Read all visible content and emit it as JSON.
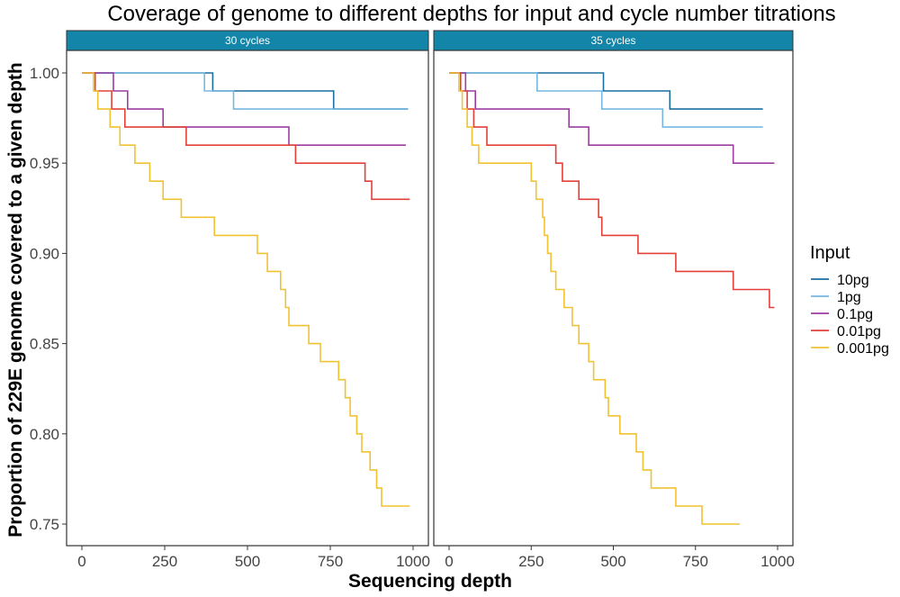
{
  "chart_data": {
    "type": "line",
    "step": true,
    "title": "Coverage of genome to different depths for input and cycle number titrations",
    "xlabel": "Sequencing depth",
    "ylabel": "Proportion of 229E genome covered to a given depth",
    "xlim": [
      0,
      1000
    ],
    "ylim": [
      0.75,
      1.0
    ],
    "xticks": [
      0,
      250,
      500,
      750,
      1000
    ],
    "xtick_labels": [
      "0",
      "250",
      "500",
      "750",
      "1000"
    ],
    "yticks": [
      0.75,
      0.8,
      0.85,
      0.9,
      0.95,
      1.0
    ],
    "ytick_labels": [
      "0.75",
      "0.80",
      "0.85",
      "0.90",
      "0.95",
      "1.00"
    ],
    "grid": false,
    "legend": {
      "title": "Input",
      "placement": "right",
      "entries": [
        {
          "label": "10pg",
          "color": "#1a6f9e"
        },
        {
          "label": "1pg",
          "color": "#76b7e0"
        },
        {
          "label": "0.1pg",
          "color": "#9b3ea0"
        },
        {
          "label": "0.01pg",
          "color": "#e2413a"
        },
        {
          "label": "0.001pg",
          "color": "#f1c232"
        }
      ]
    },
    "strip_color": "#1285a8",
    "panels": [
      {
        "label": "30 cycles",
        "series": [
          {
            "name": "10pg",
            "color": "#1a6f9e",
            "x": [
              0,
              395,
              460,
              760,
              985
            ],
            "y": [
              1.0,
              0.99,
              0.99,
              0.98,
              0.98
            ]
          },
          {
            "name": "1pg",
            "color": "#76b7e0",
            "x": [
              0,
              370,
              458,
              985
            ],
            "y": [
              1.0,
              0.99,
              0.98,
              0.98
            ]
          },
          {
            "name": "0.1pg",
            "color": "#9b3ea0",
            "x": [
              0,
              95,
              138,
              245,
              625,
              978
            ],
            "y": [
              1.0,
              0.99,
              0.98,
              0.97,
              0.96,
              0.96
            ]
          },
          {
            "name": "0.01pg",
            "color": "#e2413a",
            "x": [
              0,
              40,
              90,
              130,
              315,
              645,
              855,
              875,
              990
            ],
            "y": [
              1.0,
              0.99,
              0.98,
              0.97,
              0.96,
              0.95,
              0.94,
              0.93,
              0.93
            ]
          },
          {
            "name": "0.001pg",
            "color": "#f1c232",
            "x": [
              0,
              35,
              48,
              65,
              85,
              115,
              160,
              205,
              245,
              300,
              400,
              530,
              560,
              600,
              615,
              625,
              685,
              720,
              775,
              795,
              810,
              830,
              845,
              870,
              890,
              905,
              925,
              930,
              950,
              970,
              990
            ],
            "y": [
              1.0,
              0.99,
              0.98,
              0.98,
              0.97,
              0.96,
              0.95,
              0.94,
              0.93,
              0.92,
              0.91,
              0.9,
              0.89,
              0.88,
              0.87,
              0.86,
              0.85,
              0.84,
              0.83,
              0.82,
              0.81,
              0.8,
              0.79,
              0.78,
              0.77,
              0.76,
              0.76,
              0.76,
              0.76,
              0.76,
              0.76
            ]
          }
        ]
      },
      {
        "label": "35 cycles",
        "series": [
          {
            "name": "10pg",
            "color": "#1a6f9e",
            "x": [
              0,
              470,
              672,
              955
            ],
            "y": [
              1.0,
              0.99,
              0.98,
              0.98
            ]
          },
          {
            "name": "1pg",
            "color": "#76b7e0",
            "x": [
              0,
              268,
              465,
              650,
              955
            ],
            "y": [
              1.0,
              0.99,
              0.98,
              0.97,
              0.97
            ]
          },
          {
            "name": "0.1pg",
            "color": "#9b3ea0",
            "x": [
              0,
              50,
              80,
              365,
              425,
              865,
              990
            ],
            "y": [
              1.0,
              0.99,
              0.98,
              0.97,
              0.96,
              0.95,
              0.95
            ]
          },
          {
            "name": "0.01pg",
            "color": "#e2413a",
            "x": [
              0,
              35,
              55,
              75,
              115,
              325,
              345,
              395,
              455,
              465,
              575,
              690,
              865,
              975,
              990
            ],
            "y": [
              1.0,
              0.99,
              0.98,
              0.97,
              0.96,
              0.95,
              0.94,
              0.93,
              0.92,
              0.91,
              0.9,
              0.89,
              0.88,
              0.87,
              0.87
            ]
          },
          {
            "name": "0.001pg",
            "color": "#f1c232",
            "x": [
              0,
              30,
              40,
              55,
              70,
              90,
              95,
              250,
              265,
              285,
              290,
              300,
              310,
              325,
              350,
              375,
              395,
              425,
              440,
              475,
              485,
              520,
              570,
              590,
              615,
              650,
              690,
              715,
              770,
              885
            ],
            "y": [
              1.0,
              0.99,
              0.98,
              0.97,
              0.96,
              0.95,
              0.95,
              0.94,
              0.93,
              0.92,
              0.91,
              0.9,
              0.89,
              0.88,
              0.87,
              0.86,
              0.85,
              0.84,
              0.83,
              0.82,
              0.81,
              0.8,
              0.79,
              0.78,
              0.77,
              0.77,
              0.76,
              0.76,
              0.75,
              0.75
            ]
          }
        ]
      }
    ]
  }
}
